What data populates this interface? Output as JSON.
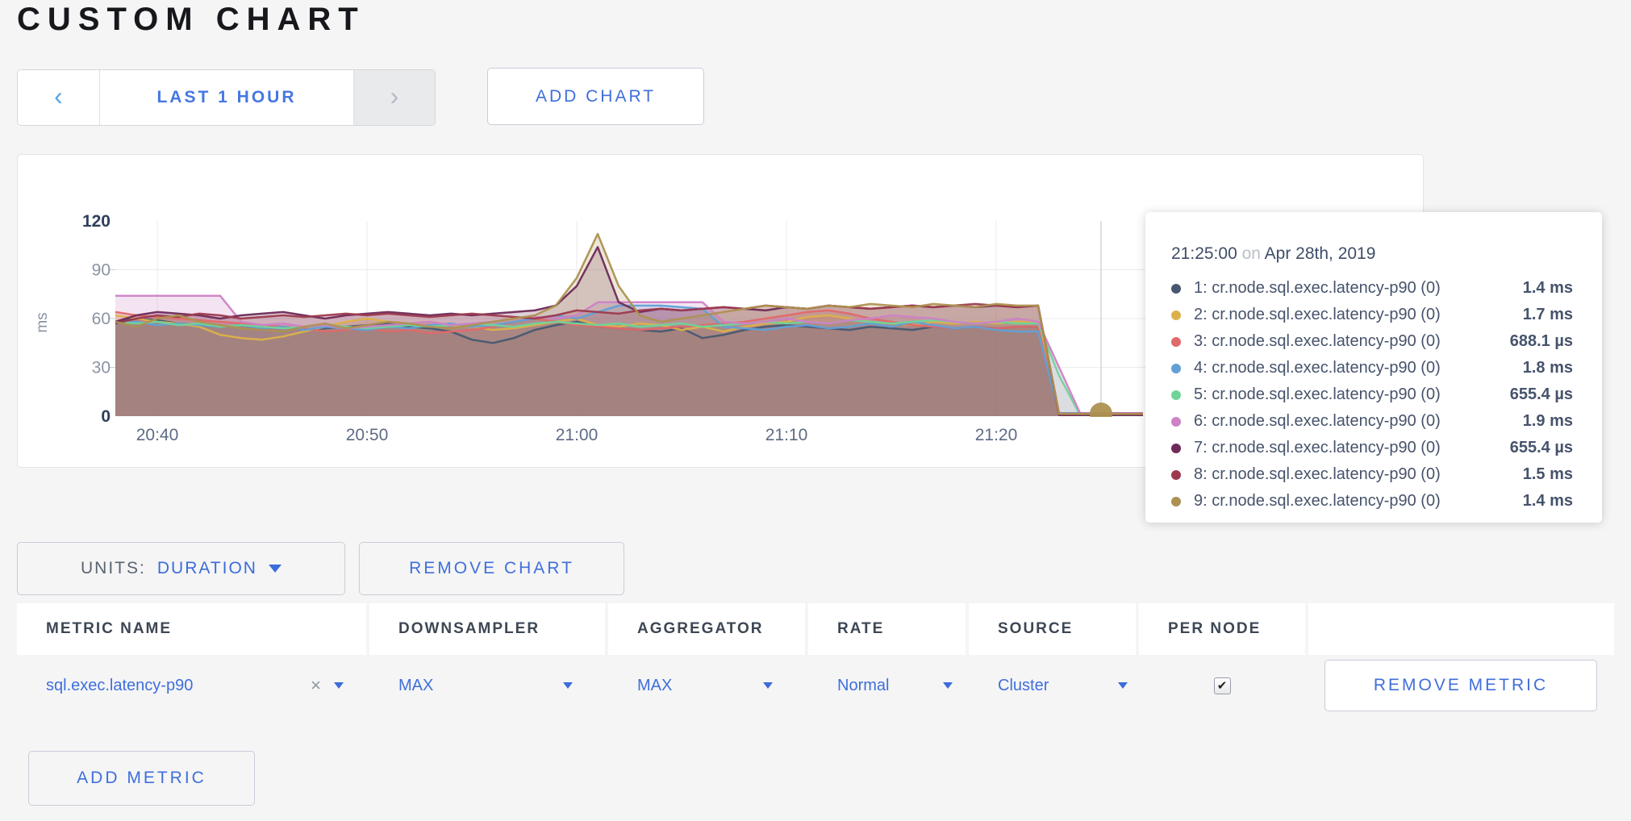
{
  "header": {
    "title": "CUSTOM CHART",
    "prev": "‹",
    "next": "›",
    "time_range": "LAST 1 HOUR",
    "add_chart": "ADD CHART"
  },
  "units_bar": {
    "units_label": "UNITS:",
    "units_value": "DURATION",
    "remove_chart_label": "REMOVE CHART"
  },
  "add_metric_label": "ADD METRIC",
  "metrics_table": {
    "headers": [
      "METRIC NAME",
      "DOWNSAMPLER",
      "AGGREGATOR",
      "RATE",
      "SOURCE",
      "PER NODE",
      ""
    ],
    "row": {
      "metric_name": "sql.exec.latency-p90",
      "clear_label": "×",
      "downsampler": "MAX",
      "aggregator": "MAX",
      "rate": "Normal",
      "source": "Cluster",
      "per_node_checked": true,
      "remove_label": "REMOVE METRIC"
    }
  },
  "chart_data": {
    "type": "area",
    "title": "",
    "xlabel": "",
    "ylabel": "ms",
    "ylim": [
      0,
      120
    ],
    "y_ticks": [
      0,
      30,
      60,
      90,
      120
    ],
    "x_tick_labels": [
      "20:40",
      "20:50",
      "21:00",
      "21:10",
      "21:20"
    ],
    "x_ticks_min": [
      0,
      10,
      20,
      30,
      40
    ],
    "grid": true,
    "legend_position": "tooltip-overlay",
    "hover": {
      "time": "21:25:00",
      "conjunction": "on",
      "date": "Apr 28th, 2019",
      "x_min": 45,
      "highlight_series": 9,
      "highlight_value_ms": 1.4
    },
    "series": [
      {
        "name": "1: cr.node.sql.exec.latency-p90 (0)",
        "color": "#475872",
        "hover_value": "1.4 ms",
        "start_min": -2,
        "step_min": 1,
        "values_ms": [
          58,
          60,
          59,
          57,
          56,
          55,
          56,
          54,
          55,
          53,
          54,
          55,
          56,
          57,
          55,
          54,
          52,
          47,
          45,
          48,
          53,
          56,
          58,
          55,
          54,
          53,
          52,
          54,
          48,
          50,
          53,
          55,
          56,
          55,
          54,
          53,
          55,
          54,
          53,
          55,
          54,
          55,
          54,
          55,
          55,
          1.4,
          1.4,
          1.4,
          1.4,
          1.4
        ]
      },
      {
        "name": "2: cr.node.sql.exec.latency-p90 (0)",
        "color": "#ddb14a",
        "hover_value": "1.7 ms",
        "start_min": -2,
        "step_min": 1,
        "values_ms": [
          62,
          60,
          58,
          57,
          55,
          50,
          48,
          47,
          49,
          52,
          55,
          58,
          60,
          58,
          57,
          58,
          56,
          55,
          53,
          54,
          56,
          58,
          60,
          56,
          55,
          57,
          56,
          53,
          55,
          52,
          55,
          57,
          58,
          61,
          62,
          60,
          58,
          57,
          56,
          58,
          57,
          58,
          57,
          58,
          58,
          1.7,
          1.7,
          1.7,
          1.7,
          1.7
        ]
      },
      {
        "name": "3: cr.node.sql.exec.latency-p90 (0)",
        "color": "#e0696a",
        "hover_value": "688.1 µs",
        "start_min": -2,
        "step_min": 1,
        "values_ms": [
          64,
          62,
          61,
          60,
          59,
          58,
          57,
          56,
          55,
          54,
          52,
          53,
          54,
          52,
          53,
          51,
          52,
          53,
          55,
          58,
          60,
          58,
          56,
          55,
          54,
          53,
          54,
          55,
          56,
          57,
          58,
          60,
          62,
          64,
          65,
          63,
          60,
          58,
          56,
          55,
          54,
          55,
          54,
          55,
          55,
          0.69,
          0.69,
          0.69,
          0.69,
          0.69
        ]
      },
      {
        "name": "4: cr.node.sql.exec.latency-p90 (0)",
        "color": "#62a0d6",
        "hover_value": "1.8 ms",
        "start_min": -2,
        "step_min": 1,
        "values_ms": [
          57,
          58,
          56,
          57,
          56,
          55,
          56,
          54,
          55,
          53,
          55,
          54,
          53,
          55,
          54,
          56,
          57,
          55,
          56,
          58,
          60,
          62,
          60,
          64,
          68,
          68,
          68,
          67,
          66,
          55,
          54,
          53,
          55,
          56,
          54,
          55,
          57,
          55,
          58,
          56,
          54,
          55,
          53,
          52,
          52,
          1.8,
          1.8,
          1.8,
          1.8,
          1.8
        ]
      },
      {
        "name": "5: cr.node.sql.exec.latency-p90 (0)",
        "color": "#6fd49a",
        "hover_value": "655.4 µs",
        "start_min": -2,
        "step_min": 1,
        "values_ms": [
          58,
          57,
          58,
          56,
          57,
          55,
          56,
          55,
          54,
          55,
          56,
          55,
          54,
          55,
          56,
          55,
          56,
          57,
          56,
          55,
          57,
          58,
          57,
          56,
          57,
          55,
          56,
          57,
          55,
          56,
          57,
          58,
          57,
          58,
          57,
          59,
          58,
          57,
          58,
          59,
          58,
          57,
          58,
          57,
          57,
          25,
          0.66,
          0.66,
          0.66,
          0.66
        ]
      },
      {
        "name": "6: cr.node.sql.exec.latency-p90 (0)",
        "color": "#cd82c6",
        "hover_value": "1.9 ms",
        "start_min": -2,
        "step_min": 1,
        "values_ms": [
          74,
          74,
          74,
          74,
          74,
          74,
          58,
          56,
          57,
          55,
          56,
          54,
          55,
          56,
          57,
          58,
          56,
          57,
          58,
          60,
          61,
          60,
          62,
          70,
          70,
          70,
          70,
          70,
          70,
          58,
          57,
          58,
          60,
          58,
          57,
          59,
          60,
          62,
          61,
          60,
          58,
          57,
          58,
          60,
          58,
          30,
          1.9,
          1.9,
          1.9,
          1.9
        ]
      },
      {
        "name": "7: cr.node.sql.exec.latency-p90 (0)",
        "color": "#6e2a58",
        "hover_value": "655.4 µs",
        "start_min": -2,
        "step_min": 1,
        "values_ms": [
          58,
          62,
          64,
          63,
          62,
          60,
          62,
          63,
          64,
          62,
          60,
          62,
          63,
          64,
          63,
          62,
          63,
          62,
          63,
          64,
          65,
          68,
          80,
          104,
          70,
          64,
          66,
          65,
          66,
          67,
          66,
          65,
          67,
          66,
          68,
          67,
          66,
          67,
          68,
          67,
          68,
          67,
          68,
          67,
          68,
          0.66,
          0.66,
          0.66,
          0.66,
          0.66
        ]
      },
      {
        "name": "8: cr.node.sql.exec.latency-p90 (0)",
        "color": "#9c3a4d",
        "hover_value": "1.5 ms",
        "start_min": -2,
        "step_min": 1,
        "values_ms": [
          57,
          60,
          62,
          61,
          63,
          62,
          60,
          61,
          62,
          61,
          62,
          63,
          62,
          63,
          62,
          61,
          62,
          63,
          62,
          61,
          60,
          62,
          65,
          64,
          63,
          65,
          66,
          65,
          66,
          67,
          66,
          68,
          67,
          66,
          68,
          67,
          66,
          67,
          68,
          67,
          68,
          69,
          68,
          67,
          68,
          1.5,
          1.5,
          1.5,
          1.5,
          1.5
        ]
      },
      {
        "name": "9: cr.node.sql.exec.latency-p90 (0)",
        "color": "#ad9150",
        "hover_value": "1.4 ms",
        "start_min": -2,
        "step_min": 1,
        "values_ms": [
          58,
          55,
          60,
          62,
          58,
          56,
          54,
          53,
          52,
          55,
          57,
          54,
          56,
          58,
          57,
          55,
          54,
          56,
          58,
          60,
          62,
          68,
          85,
          112,
          80,
          62,
          58,
          60,
          62,
          64,
          66,
          68,
          67,
          66,
          68,
          67,
          69,
          68,
          67,
          69,
          68,
          67,
          69,
          68,
          68,
          1.4,
          1.4,
          1.4,
          1.4,
          1.4
        ]
      }
    ]
  }
}
